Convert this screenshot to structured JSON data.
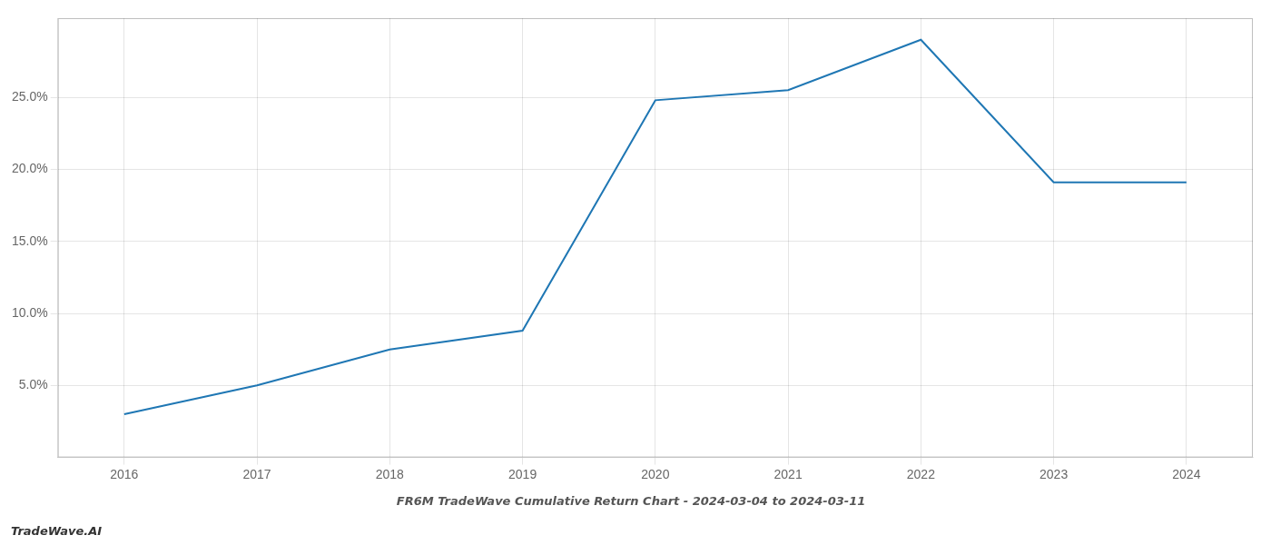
{
  "chart_data": {
    "type": "line",
    "title": "FR6M TradeWave Cumulative Return Chart - 2024-03-04 to 2024-03-11",
    "annotations": [
      "TradeWave.AI"
    ],
    "x": [
      2016,
      2017,
      2018,
      2019,
      2020,
      2021,
      2022,
      2023,
      2024
    ],
    "values": [
      0.03,
      0.05,
      0.075,
      0.088,
      0.248,
      0.255,
      0.29,
      0.191,
      0.191
    ],
    "color": "#1f77b4",
    "xlim": [
      2015.5,
      2024.5
    ],
    "xticks": [
      2016,
      2017,
      2018,
      2019,
      2020,
      2021,
      2022,
      2023,
      2024
    ],
    "ylim": [
      0.0,
      0.305
    ],
    "yticks": [
      {
        "value": 0.05,
        "label": "5.0%"
      },
      {
        "value": 0.1,
        "label": "10.0%"
      },
      {
        "value": 0.15,
        "label": "15.0%"
      },
      {
        "value": 0.2,
        "label": "20.0%"
      },
      {
        "value": 0.25,
        "label": "25.0%"
      }
    ],
    "grid": true
  }
}
